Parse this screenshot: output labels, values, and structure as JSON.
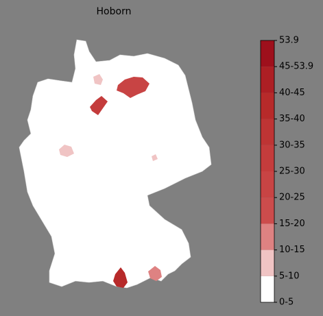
{
  "title": "Hoborn",
  "colorbar": {
    "bins": [
      {
        "label": "0-5",
        "color": "#ffffff"
      },
      {
        "label": "5-10",
        "color": "#f0c4c4"
      },
      {
        "label": "10-15",
        "color": "#de8282"
      },
      {
        "label": "15-20",
        "color": "#cc4c4c"
      },
      {
        "label": "20-25",
        "color": "#c84444"
      },
      {
        "label": "25-30",
        "color": "#c43c3c"
      },
      {
        "label": "30-35",
        "color": "#be3434"
      },
      {
        "label": "35-40",
        "color": "#b72a2a"
      },
      {
        "label": "40-45",
        "color": "#ad1f24"
      },
      {
        "label": "45-53.9",
        "color": "#9e101c"
      }
    ],
    "top_label": "53.9"
  }
}
